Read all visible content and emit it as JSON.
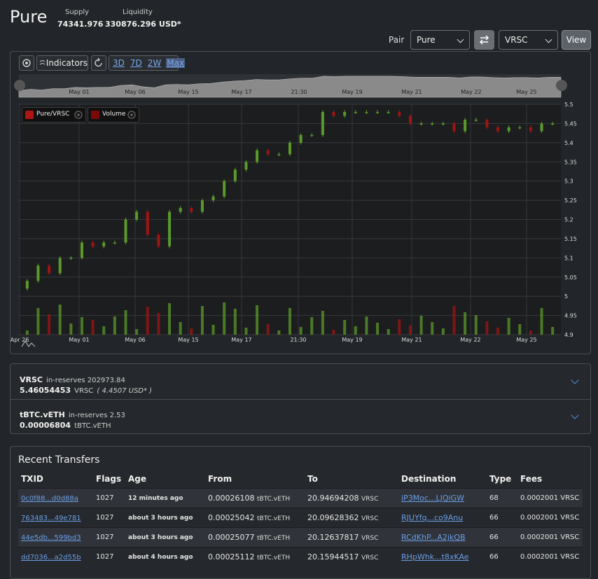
{
  "header": {
    "title": "Pure",
    "supply_label": "Supply",
    "supply_value": "74341.976",
    "liquidity_label": "Liquidity",
    "liquidity_value": "330876.296 USD*"
  },
  "pair": {
    "label": "Pair",
    "base": "Pure",
    "quote": "VRSC",
    "view_label": "View"
  },
  "toolbar": {
    "indicators_label": "Indicators",
    "ranges": [
      "3D",
      "7D",
      "2W",
      "Max"
    ],
    "active_range": "Max"
  },
  "navigator": {
    "ticks": [
      "May 01",
      "May 06",
      "May 15",
      "May 17",
      "21:30",
      "May 19",
      "May 21",
      "May 22",
      "May 25"
    ]
  },
  "legend": {
    "series1": "Pure/VRSC",
    "series2": "Volume"
  },
  "colors": {
    "up": "#5a9a2a",
    "down": "#a01414",
    "accent_link": "#6b9ee8",
    "background": "#222529"
  },
  "chart_data": {
    "type": "candlestick",
    "x_ticks": [
      "Apr 26",
      "May 01",
      "May 06",
      "May 15",
      "May 17",
      "21:30",
      "May 19",
      "May 21",
      "May 22",
      "May 25"
    ],
    "y_ticks": [
      "5.5",
      "5.45",
      "5.4",
      "5.35",
      "5.3",
      "5.25",
      "5.2",
      "5.15",
      "5.1",
      "5.05",
      "5",
      "4.95",
      "4.9"
    ],
    "ylim": [
      4.9,
      5.5
    ],
    "grid": true,
    "approx_close_series": [
      5.04,
      5.08,
      5.06,
      5.1,
      5.1,
      5.14,
      5.13,
      5.14,
      5.14,
      5.2,
      5.22,
      5.16,
      5.13,
      5.22,
      5.23,
      5.22,
      5.25,
      5.26,
      5.3,
      5.33,
      5.35,
      5.38,
      5.37,
      5.37,
      5.4,
      5.42,
      5.42,
      5.48,
      5.47,
      5.48,
      5.48,
      5.48,
      5.48,
      5.48,
      5.47,
      5.45,
      5.45,
      5.45,
      5.45,
      5.43,
      5.46,
      5.46,
      5.44,
      5.43,
      5.44,
      5.44,
      5.43,
      5.45,
      5.45
    ]
  },
  "reserves": [
    {
      "name": "VRSC",
      "reserves_label": "in-reserves 202973.84",
      "value": "5.46054453",
      "unit": "VRSC",
      "usd": "( 4.4507 USD* )"
    },
    {
      "name": "tBTC.vETH",
      "reserves_label": "in-reserves 2.53",
      "value": "0.00006804",
      "unit": "tBTC.vETH",
      "usd": ""
    }
  ],
  "transfers": {
    "title": "Recent Transfers",
    "columns": [
      "TXID",
      "Flags",
      "Age",
      "From",
      "To",
      "Destination",
      "Type",
      "Fees"
    ],
    "rows": [
      {
        "txid": "0c0f88...d0d88a",
        "flags": "1027",
        "age": "12 minutes ago",
        "from": "0.00026108",
        "from_unit": "tBTC.vETH",
        "to": "20.94694208",
        "to_unit": "VRSC",
        "dest": "iP3Moc...LJQiGW",
        "type": "68",
        "fees": "0.0002001 VRSC"
      },
      {
        "txid": "763483...49e781",
        "flags": "1027",
        "age": "about 3 hours ago",
        "from": "0.00025042",
        "from_unit": "tBTC.vETH",
        "to": "20.09628362",
        "to_unit": "VRSC",
        "dest": "RJUYfq...co9Anu",
        "type": "66",
        "fees": "0.0002001 VRSC"
      },
      {
        "txid": "44e5db...599bd3",
        "flags": "1027",
        "age": "about 3 hours ago",
        "from": "0.00025077",
        "from_unit": "tBTC.vETH",
        "to": "20.12637817",
        "to_unit": "VRSC",
        "dest": "RCdKhP...A2jkQB",
        "type": "66",
        "fees": "0.0002001 VRSC"
      },
      {
        "txid": "dd7036...a2d55b",
        "flags": "1027",
        "age": "about 4 hours ago",
        "from": "0.00025112",
        "from_unit": "tBTC.vETH",
        "to": "20.15944517",
        "to_unit": "VRSC",
        "dest": "RHpWhk...t8xKAe",
        "type": "66",
        "fees": "0.0002001 VRSC"
      }
    ]
  }
}
